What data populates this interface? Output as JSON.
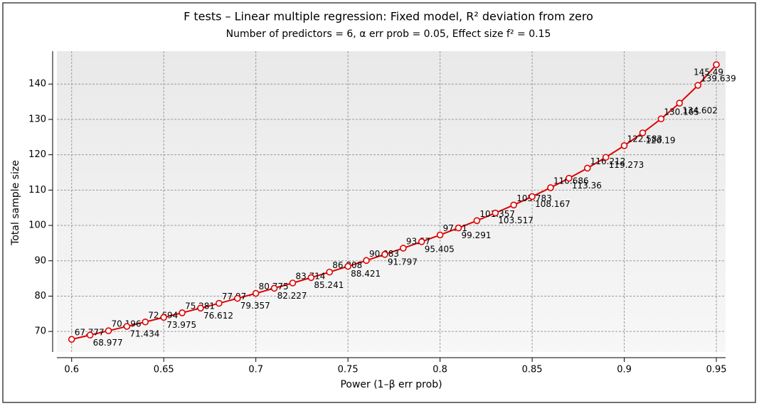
{
  "chart_data": {
    "type": "line",
    "title": "F tests – Linear multiple regression: Fixed model, R² deviation from zero",
    "subtitle": "Number of predictors = 6, α err prob = 0.05, Effect size f² = 0.15",
    "x_label": "Power (1–β err prob)",
    "y_label": "Total sample size",
    "x": [
      0.6,
      0.61,
      0.62,
      0.63,
      0.64,
      0.65,
      0.66,
      0.67,
      0.68,
      0.69,
      0.7,
      0.71,
      0.72,
      0.73,
      0.74,
      0.75,
      0.76,
      0.77,
      0.78,
      0.79,
      0.8,
      0.81,
      0.82,
      0.83,
      0.84,
      0.85,
      0.86,
      0.87,
      0.88,
      0.89,
      0.9,
      0.91,
      0.92,
      0.93,
      0.94,
      0.95
    ],
    "series": [
      {
        "color": "#e00000",
        "values": [
          67.777,
          68.977,
          70.196,
          71.434,
          72.694,
          73.975,
          75.281,
          76.612,
          77.97,
          79.357,
          80.775,
          82.227,
          83.714,
          85.241,
          86.808,
          88.421,
          90.083,
          91.797,
          93.57,
          95.405,
          97.31,
          99.291,
          101.357,
          103.517,
          105.783,
          108.167,
          110.686,
          113.36,
          116.212,
          119.273,
          122.583,
          126.19,
          130.165,
          134.602,
          139.639,
          145.49
        ]
      }
    ],
    "xlim": [
      0.592,
      0.955
    ],
    "ylim": [
      64.2,
      149.3
    ],
    "xticks": [
      0.6,
      0.65,
      0.7,
      0.75,
      0.8,
      0.85,
      0.9,
      0.95
    ],
    "yticks": [
      70,
      80,
      90,
      100,
      110,
      120,
      130,
      140
    ],
    "grid": true
  }
}
